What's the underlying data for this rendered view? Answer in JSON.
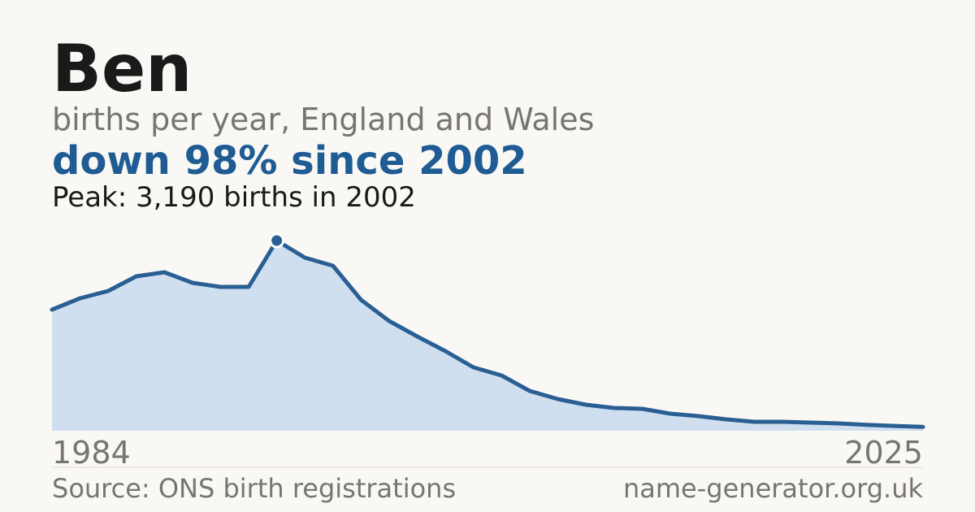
{
  "chart_data": {
    "type": "area",
    "title": "Ben",
    "subtitle": "births per year, England and Wales",
    "headline": "down 98% since 2002",
    "annotation": "Peak: 3,190 births in 2002",
    "source": "Source: ONS birth registrations",
    "site": "name-generator.org.uk",
    "categories": [
      "1984",
      null,
      null,
      null,
      null,
      null,
      null,
      null,
      null,
      null,
      null,
      null,
      null,
      null,
      null,
      null,
      null,
      null,
      null,
      null,
      null,
      null,
      null,
      null,
      null,
      null,
      null,
      null,
      null,
      null,
      null,
      "2025"
    ],
    "series": [
      {
        "name": "Ben",
        "color": "#2a5f94",
        "values": [
          2031,
          2222,
          2345,
          2590,
          2658,
          2481,
          2413,
          2413,
          3190,
          2904,
          2767,
          2195,
          1840,
          1581,
          1336,
          1063,
          927,
          668,
          532,
          436,
          382,
          368,
          286,
          245,
          191,
          150,
          150,
          136,
          123,
          100,
          80,
          64
        ]
      }
    ],
    "area_color": "#d0dff0",
    "peak_index": 8,
    "ylim": [
      0,
      3190
    ]
  }
}
